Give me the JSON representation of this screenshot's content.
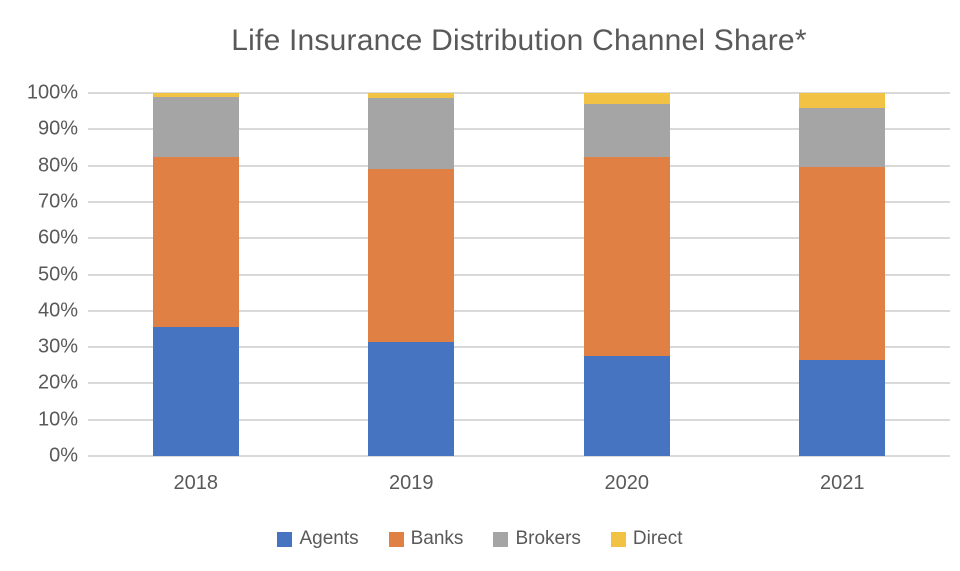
{
  "title": "Life Insurance Distribution Channel Share*",
  "chart_data": {
    "type": "bar",
    "stacked": true,
    "title": "Life Insurance Distribution Channel Share*",
    "categories": [
      "2018",
      "2019",
      "2020",
      "2021"
    ],
    "series": [
      {
        "name": "Agents",
        "color": "#4674C1",
        "values": [
          35.5,
          31.5,
          27.5,
          26.5
        ]
      },
      {
        "name": "Banks",
        "color": "#E08044",
        "values": [
          47.0,
          47.5,
          55.0,
          53.0
        ]
      },
      {
        "name": "Brokers",
        "color": "#A5A5A5",
        "values": [
          16.5,
          19.5,
          14.5,
          16.5
        ]
      },
      {
        "name": "Direct",
        "color": "#F2C244",
        "values": [
          1.0,
          1.5,
          3.0,
          4.0
        ]
      }
    ],
    "xlabel": "",
    "ylabel": "",
    "ylim": [
      0,
      100
    ],
    "y_tick_step": 10,
    "y_ticks": [
      "0%",
      "10%",
      "20%",
      "30%",
      "40%",
      "50%",
      "60%",
      "70%",
      "80%",
      "90%",
      "100%"
    ],
    "grid": true,
    "gridline_color": "#D9D9D9",
    "text_color": "#595959",
    "legend_position": "bottom"
  }
}
